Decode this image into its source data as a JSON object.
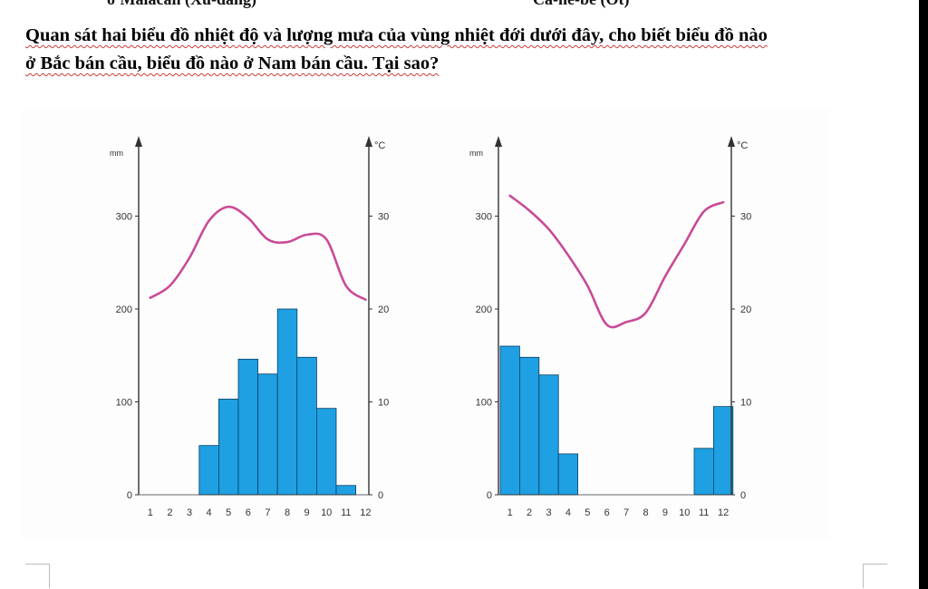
{
  "header_fragments": {
    "left": "ở Malacan (Xu-đăng)",
    "right": "Ca-ne-be (Ôt)"
  },
  "question": {
    "line1": "Quan sát hai biểu đồ nhiệt độ và lượng mưa của vùng nhiệt đới dưới đây, cho biết biểu đồ nào",
    "line2": "ở Bắc bán cầu, biểu đồ nào ở Nam bán cầu. Tại sao?"
  },
  "colors": {
    "bar": "#1ea0e3",
    "bar_edge": "#0b3f63",
    "temperature_line": "#c94a97",
    "axis": "#333333"
  },
  "chart_data": [
    {
      "type": "bar",
      "title": "",
      "xlabel": "",
      "ylabel": "mm",
      "y2label": "°C",
      "categories": [
        "1",
        "2",
        "3",
        "4",
        "5",
        "6",
        "7",
        "8",
        "9",
        "10",
        "11",
        "12"
      ],
      "ylim": [
        0,
        350
      ],
      "y2lim": [
        0,
        35
      ],
      "yticks": [
        0,
        100,
        200,
        300
      ],
      "y2ticks": [
        0,
        10,
        20,
        30
      ],
      "series": [
        {
          "kind": "bar",
          "axis": "mm",
          "values": [
            0,
            0,
            0,
            53,
            103,
            146,
            130,
            200,
            148,
            93,
            10,
            0
          ]
        },
        {
          "kind": "line",
          "axis": "°C",
          "values": [
            21.2,
            22.5,
            25.5,
            29.5,
            31,
            29.8,
            27.5,
            27.2,
            28,
            27.5,
            22.5,
            21
          ]
        }
      ]
    },
    {
      "type": "bar",
      "title": "",
      "xlabel": "",
      "ylabel": "mm",
      "y2label": "°C",
      "categories": [
        "1",
        "2",
        "3",
        "4",
        "5",
        "6",
        "7",
        "8",
        "9",
        "10",
        "11",
        "12"
      ],
      "ylim": [
        0,
        350
      ],
      "y2lim": [
        0,
        35
      ],
      "yticks": [
        0,
        100,
        200,
        300
      ],
      "y2ticks": [
        0,
        10,
        20,
        30
      ],
      "series": [
        {
          "kind": "bar",
          "axis": "mm",
          "values": [
            160,
            148,
            129,
            44,
            0,
            0,
            0,
            0,
            0,
            0,
            50,
            95
          ]
        },
        {
          "kind": "line",
          "axis": "°C",
          "values": [
            32.2,
            30.6,
            28.6,
            25.8,
            22.5,
            18.3,
            18.6,
            19.6,
            23.5,
            27,
            30.5,
            31.5
          ]
        }
      ]
    }
  ]
}
